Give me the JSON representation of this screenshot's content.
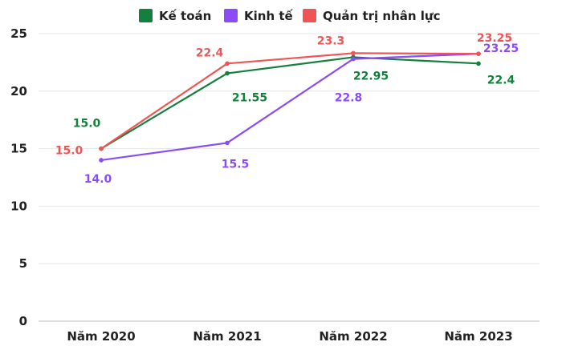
{
  "chart_data": {
    "type": "line",
    "categories": [
      "Năm 2020",
      "Năm 2021",
      "Năm 2022",
      "Năm 2023"
    ],
    "ylim": [
      0,
      25
    ],
    "yticks": [
      0,
      5,
      10,
      15,
      20,
      25
    ],
    "grid": true,
    "legend_position": "top-center",
    "series": [
      {
        "name": "Kế toán",
        "color": "#15803d",
        "values": [
          15.0,
          21.55,
          22.95,
          22.4
        ],
        "labels": [
          "15.0",
          "21.55",
          "22.95",
          "22.4"
        ]
      },
      {
        "name": "Kinh tế",
        "color": "#8b4cf6",
        "values": [
          14.0,
          15.5,
          22.8,
          23.25
        ],
        "labels": [
          "14.0",
          "15.5",
          "22.8",
          "23.25"
        ]
      },
      {
        "name": "Quản trị nhân lực",
        "color": "#f05555",
        "values": [
          15.0,
          22.4,
          23.3,
          23.25
        ],
        "labels": [
          "15.0",
          "22.4",
          "23.3",
          "23.25"
        ]
      }
    ]
  }
}
